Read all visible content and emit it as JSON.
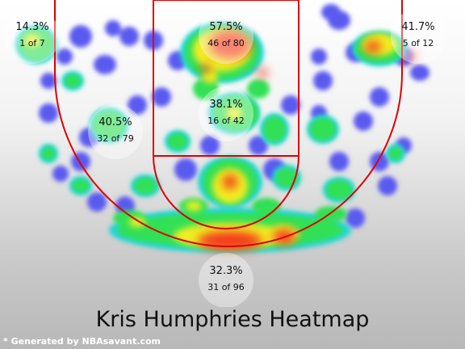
{
  "chart_data": {
    "type": "heatmap",
    "title": "Kris Humphries Heatmap",
    "credit": "* Generated by NBAsavant.com",
    "colors": {
      "cold": "#5a5af0",
      "cool": "#22d6d6",
      "mid": "#33e055",
      "warm": "#f2ee22",
      "hot": "#f43a1f",
      "court_lines": "#e00000"
    },
    "zones": [
      {
        "zone": "left-corner-three",
        "pct": "14.3%",
        "made_of": "1 of 7"
      },
      {
        "zone": "restricted-area",
        "pct": "57.5%",
        "made_of": "46 of 80"
      },
      {
        "zone": "right-corner-three",
        "pct": "41.7%",
        "made_of": "5 of 12"
      },
      {
        "zone": "left-midrange",
        "pct": "40.5%",
        "made_of": "32 of 79"
      },
      {
        "zone": "paint-non-ra",
        "pct": "38.1%",
        "made_of": "16 of 42"
      },
      {
        "zone": "above-break-three",
        "pct": "32.3%",
        "made_of": "31 of 96"
      }
    ]
  }
}
